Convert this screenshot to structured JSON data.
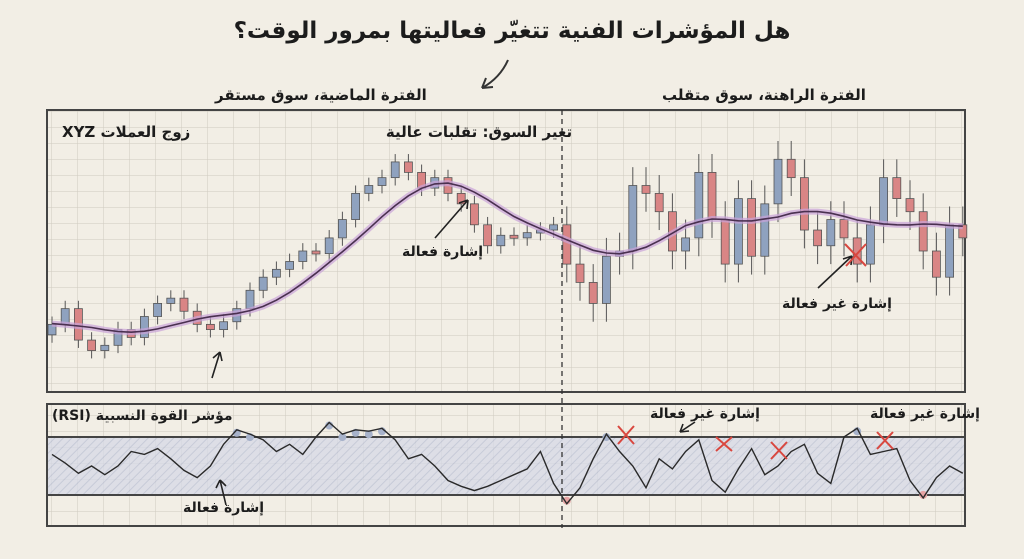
{
  "title": "هل المؤشرات الفنية تتغيّر فعاليتها بمرور الوقت؟",
  "period_past_label": "الفترة الماضية، سوق مستقر",
  "period_current_label": "الفترة الراهنة، سوق متقلب",
  "colors": {
    "bullish": "#8fa2bf",
    "bearish": "#d98585",
    "moving_average": "#4a3050",
    "ma_glow": "#c9a3d8",
    "rsi_band": "#c9cfe0",
    "invalid_mark": "#d9473f",
    "background": "#f2eee5"
  },
  "chart_data": [
    {
      "type": "candlestick",
      "title": "زوج العملات XYZ",
      "annotation_regime": "تغير السوق: تقلبات عالية",
      "annotation_effective": "إشارة فعالة",
      "annotation_ineffective": "إشارة غير فعالة",
      "overlay": "moving average",
      "grid": true,
      "closes": [
        22,
        28,
        16,
        12,
        14,
        20,
        17,
        25,
        30,
        32,
        27,
        22,
        20,
        23,
        28,
        35,
        40,
        43,
        46,
        50,
        49,
        55,
        62,
        72,
        75,
        78,
        84,
        80,
        74,
        78,
        72,
        68,
        60,
        52,
        56,
        55,
        57,
        58,
        60,
        45,
        38,
        30,
        48,
        50,
        75,
        72,
        65,
        50,
        55,
        80,
        62,
        45,
        70,
        48,
        68,
        85,
        78,
        58,
        52,
        62,
        55,
        45,
        60,
        78,
        70,
        65,
        50,
        40,
        60,
        55
      ],
      "open_first": 18
    },
    {
      "type": "line",
      "title": "مؤشر القوة النسبية (RSI)",
      "annotation_effective": "إشارة فعالة",
      "annotation_ineffective_1": "إشارة غير فعالة",
      "annotation_ineffective_2": "إشارة غير فعالة",
      "levels": [
        30,
        70
      ],
      "ylim": [
        0,
        100
      ],
      "values": [
        58,
        52,
        45,
        50,
        44,
        50,
        60,
        58,
        62,
        55,
        47,
        42,
        50,
        65,
        75,
        72,
        68,
        60,
        65,
        58,
        70,
        80,
        72,
        75,
        74,
        76,
        68,
        55,
        58,
        50,
        40,
        36,
        33,
        36,
        40,
        44,
        48,
        60,
        38,
        24,
        35,
        55,
        72,
        60,
        50,
        35,
        55,
        48,
        60,
        68,
        40,
        32,
        48,
        62,
        44,
        50,
        60,
        65,
        45,
        38,
        70,
        76,
        58,
        60,
        62,
        40,
        28,
        42,
        50,
        45
      ]
    }
  ]
}
